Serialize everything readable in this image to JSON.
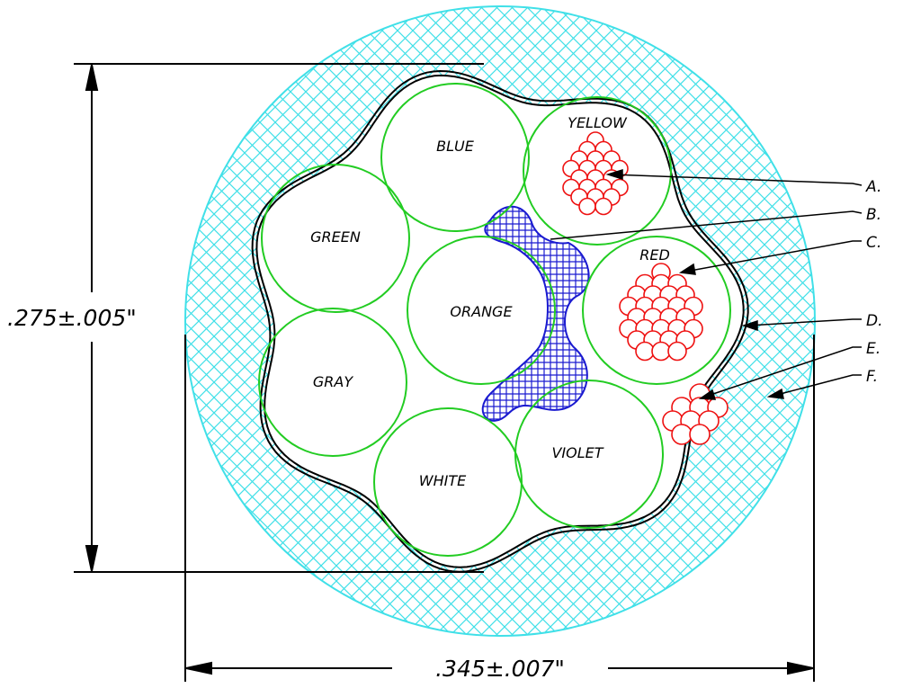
{
  "conductors": [
    {
      "label": "BLUE"
    },
    {
      "label": "YELLOW"
    },
    {
      "label": "GREEN"
    },
    {
      "label": "ORANGE"
    },
    {
      "label": "RED"
    },
    {
      "label": "GRAY"
    },
    {
      "label": "WHITE"
    },
    {
      "label": "VIOLET"
    }
  ],
  "callouts": [
    "A.",
    "B.",
    "C.",
    "D.",
    "E.",
    "F."
  ],
  "dimensions": {
    "height": ".275±.005\"",
    "width": ".345±.007\""
  },
  "colors": {
    "jacket_hatch": "#40e0e8",
    "conductor_outline": "#22cc22",
    "strand": "#ee1111",
    "filler": "#1a1ad0",
    "shield": "#000000"
  }
}
